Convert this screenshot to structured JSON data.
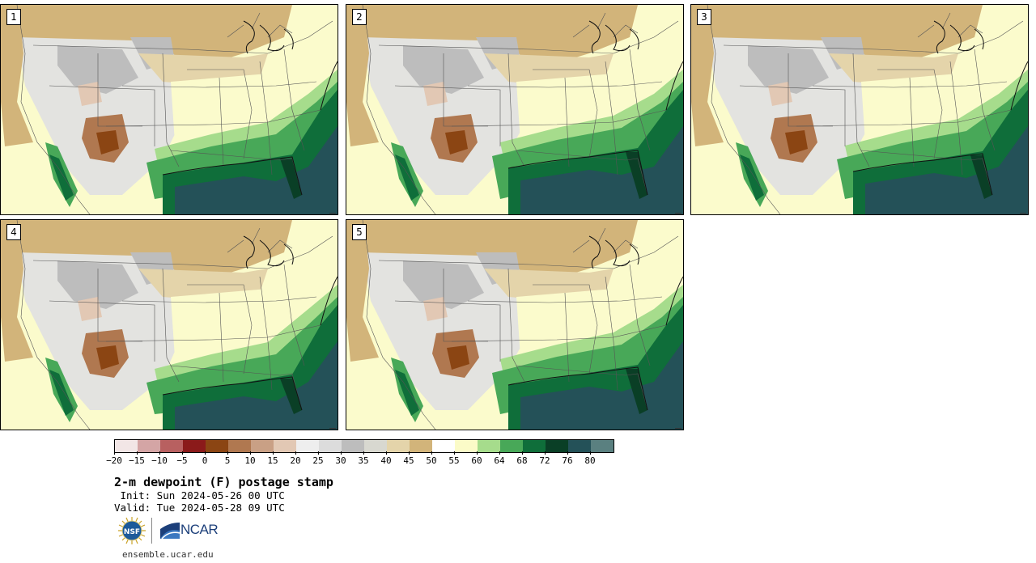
{
  "panels": [
    {
      "label": "1"
    },
    {
      "label": "2"
    },
    {
      "label": "3"
    },
    {
      "label": "4"
    },
    {
      "label": "5"
    }
  ],
  "colorbar": {
    "colors": [
      "#f2e6e6",
      "#d4a5a5",
      "#b86060",
      "#8b1a1a",
      "#8b4513",
      "#b07850",
      "#c9a085",
      "#e2c8b4",
      "#eeeeee",
      "#dcdcdc",
      "#bdbdbd",
      "#d8d8d0",
      "#e4d4aa",
      "#d2b47a",
      "#ffffff",
      "#fbfbc8",
      "#a6dc8c",
      "#48a858",
      "#0f6e3a",
      "#0a3f26",
      "#245158",
      "#5a8080"
    ],
    "ticks": [
      "−20",
      "−15",
      "−10",
      "−5",
      "0",
      "5",
      "10",
      "15",
      "20",
      "25",
      "30",
      "35",
      "40",
      "45",
      "50",
      "55",
      "60",
      "64",
      "68",
      "72",
      "76",
      "80"
    ]
  },
  "title": "2-m dewpoint (F) postage stamp",
  "init": " Init: Sun 2024-05-26 00 UTC",
  "valid": "Valid: Tue 2024-05-28 09 UTC",
  "logos": {
    "nsf": "NSF",
    "ncar": "NCAR"
  },
  "url": "ensemble.ucar.edu"
}
